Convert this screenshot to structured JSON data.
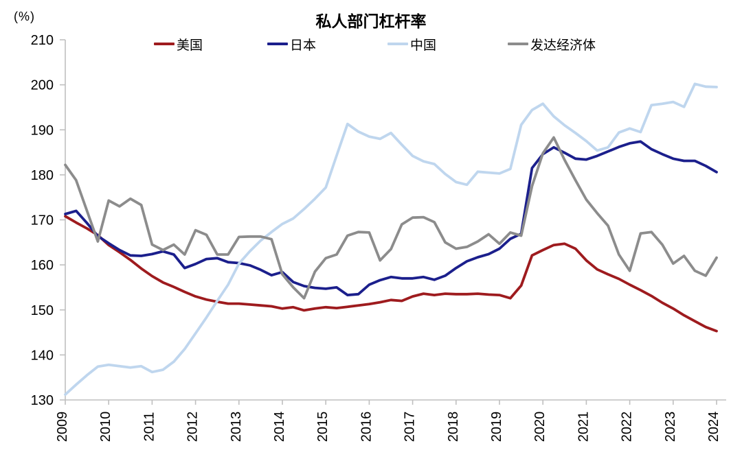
{
  "chart_data": {
    "type": "line",
    "title": "私人部门杠杆率",
    "ylabel": "(%)",
    "xlabel": "",
    "grid": false,
    "legend_position": "top",
    "axis_color": "#BFBFBF",
    "ylim": [
      130,
      210
    ],
    "y_ticks": [
      210,
      200,
      190,
      180,
      170,
      160,
      150,
      140,
      130
    ],
    "x_tick_labels": [
      "2009",
      "2010",
      "2011",
      "2012",
      "2013",
      "2014",
      "2015",
      "2016",
      "2017",
      "2018",
      "2019",
      "2020",
      "2021",
      "2022",
      "2023",
      "2024"
    ],
    "x_frequency": "quarterly",
    "x_range": "2009Q1-2024Q1",
    "series": [
      {
        "name": "美国",
        "color": "#9E1B1E",
        "values": [
          170.8,
          169.4,
          168.1,
          166.6,
          164.4,
          162.8,
          161.1,
          159.2,
          157.5,
          156.1,
          155.1,
          154,
          153,
          152.3,
          151.8,
          151.4,
          151.4,
          151.2,
          151,
          150.8,
          150.3,
          150.6,
          149.9,
          150.3,
          150.6,
          150.4,
          150.7,
          151,
          151.3,
          151.7,
          152.2,
          152,
          153,
          153.6,
          153.3,
          153.6,
          153.5,
          153.5,
          153.6,
          153.4,
          153.3,
          152.6,
          155.4,
          162.1,
          163.3,
          164.4,
          164.7,
          163.6,
          161,
          159,
          157.9,
          156.9,
          155.6,
          154.4,
          153.1,
          151.6,
          150.3,
          148.8,
          147.5,
          146.2,
          145.3
        ]
      },
      {
        "name": "日本",
        "color": "#1B1F8C",
        "values": [
          171.3,
          172,
          169.3,
          166.4,
          164.8,
          163.3,
          162.1,
          162,
          162.4,
          163,
          162.3,
          159.3,
          160.2,
          161.3,
          161.5,
          160.6,
          160.4,
          159.9,
          158.9,
          157.7,
          158.4,
          156.2,
          155.3,
          154.9,
          154.7,
          155,
          153.3,
          153.5,
          155.6,
          156.6,
          157.3,
          157,
          157,
          157.3,
          156.7,
          157.6,
          159.3,
          160.8,
          161.7,
          162.4,
          163.6,
          165.8,
          166.9,
          181.5,
          184.6,
          186.1,
          184.9,
          183.6,
          183.4,
          184.2,
          185.2,
          186.2,
          187,
          187.4,
          185.7,
          184.6,
          183.6,
          183.1,
          183.1,
          182,
          180.6
        ]
      },
      {
        "name": "中国",
        "color": "#BFD6EE",
        "values": [
          131.2,
          133.4,
          135.5,
          137.4,
          137.8,
          137.5,
          137.2,
          137.5,
          136.2,
          136.7,
          138.5,
          141.3,
          144.8,
          148.3,
          152,
          155.6,
          160.3,
          163,
          165.4,
          167.3,
          169.1,
          170.3,
          172.4,
          174.7,
          177.2,
          184.3,
          191.3,
          189.6,
          188.5,
          188,
          189.3,
          186.7,
          184.2,
          183,
          182.4,
          180.2,
          178.4,
          177.8,
          180.7,
          180.5,
          180.3,
          181.3,
          191.1,
          194.4,
          195.8,
          193,
          191,
          189.3,
          187.5,
          185.4,
          186.1,
          189.4,
          190.3,
          189.5,
          195.5,
          195.8,
          196.2,
          195.1,
          200.2,
          199.6,
          199.5
        ]
      },
      {
        "name": "发达经济体",
        "color": "#8C8C8C",
        "values": [
          182.2,
          178.8,
          172,
          165.2,
          174.3,
          173,
          174.7,
          173.3,
          164.5,
          163.3,
          164.5,
          162.3,
          167.7,
          166.7,
          162.3,
          162.3,
          166.2,
          166.3,
          166.3,
          165.7,
          157.9,
          155,
          152.6,
          158.5,
          161.5,
          162.3,
          166.5,
          167.3,
          167.2,
          161,
          163.5,
          169,
          170.5,
          170.6,
          169.5,
          165,
          163.6,
          164,
          165.2,
          166.8,
          164.7,
          167.2,
          166.5,
          177.5,
          184.8,
          188.3,
          183.3,
          178.8,
          174.5,
          171.5,
          168.7,
          162.3,
          158.7,
          167,
          167.3,
          164.5,
          160.3,
          162,
          158.7,
          157.6,
          161.6
        ]
      }
    ]
  },
  "legend": {
    "items": [
      {
        "label": "美国"
      },
      {
        "label": "日本"
      },
      {
        "label": "中国"
      },
      {
        "label": "发达经济体"
      }
    ]
  }
}
